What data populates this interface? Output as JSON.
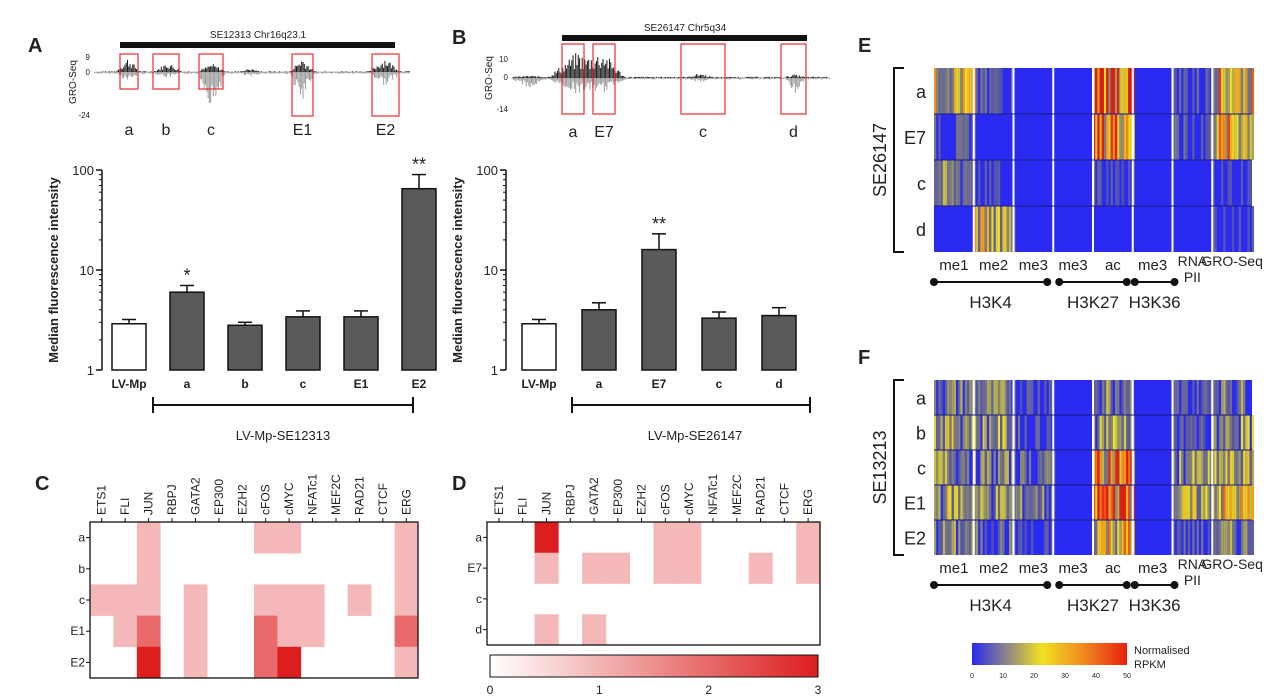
{
  "colors": {
    "bar_dark": "#5a5a5a",
    "heat_low": "#2a2af0",
    "heat_mid": "#f0e020",
    "heat_high": "#e82010",
    "pink_light": "#f4b8b8",
    "pink_mid": "#ea6a6a",
    "pink_dark": "#dc1e1e",
    "gro_pos": "#1a1a1a",
    "gro_neg": "#9a9a9a",
    "box_red": "#e83030"
  },
  "panels": {
    "A": "A",
    "B": "B",
    "C": "C",
    "D": "D",
    "E": "E",
    "F": "F"
  },
  "chart_data": [
    {
      "id": "A_track",
      "type": "area",
      "title": "SE12313 Chr16q23.1",
      "ylabel": "GRO-Seq",
      "y_ticks": [
        "9",
        "0",
        "-24"
      ],
      "boxes": [
        "a",
        "b",
        "c",
        "E1",
        "E2"
      ]
    },
    {
      "id": "B_track",
      "type": "area",
      "title": "SE26147 Chr5q34",
      "ylabel": "GRO-Seq",
      "y_ticks": [
        "10",
        "0",
        "-14"
      ],
      "boxes": [
        "a",
        "E7",
        "c",
        "d"
      ]
    },
    {
      "id": "A_bars",
      "type": "bar",
      "ylabel": "Median fluorescence intensity",
      "yscale": "log",
      "ylim": [
        1,
        100
      ],
      "y_ticks": [
        "1",
        "10",
        "100"
      ],
      "categories": [
        "LV-Mp",
        "a",
        "b",
        "c",
        "E1",
        "E2"
      ],
      "values": [
        2.9,
        6.0,
        2.8,
        3.4,
        3.4,
        65
      ],
      "errors": [
        0.3,
        1.0,
        0.2,
        0.5,
        0.5,
        25
      ],
      "significance": [
        "",
        "*",
        "",
        "",
        "",
        "**"
      ],
      "group_label": "LV-Mp-SE12313"
    },
    {
      "id": "B_bars",
      "type": "bar",
      "ylabel": "Median fluorescence intensity",
      "yscale": "log",
      "ylim": [
        1,
        100
      ],
      "y_ticks": [
        "1",
        "10",
        "100"
      ],
      "categories": [
        "LV-Mp",
        "a",
        "E7",
        "c",
        "d"
      ],
      "values": [
        2.9,
        4.0,
        16,
        3.3,
        3.5
      ],
      "errors": [
        0.3,
        0.7,
        7,
        0.5,
        0.7
      ],
      "significance": [
        "",
        "",
        "**",
        "",
        ""
      ],
      "group_label": "LV-Mp-SE26147"
    },
    {
      "id": "C_heat",
      "type": "heatmap",
      "columns": [
        "ETS1",
        "FLI",
        "JUN",
        "RBPJ",
        "GATA2",
        "EP300",
        "EZH2",
        "cFOS",
        "cMYC",
        "NFATc1",
        "MEF2C",
        "RAD21",
        "CTCF",
        "ERG"
      ],
      "rows": [
        "a",
        "b",
        "c",
        "E1",
        "E2"
      ],
      "values": [
        [
          0,
          0,
          1,
          0,
          0,
          0,
          0,
          1,
          1,
          0,
          0,
          0,
          0,
          1
        ],
        [
          0,
          0,
          1,
          0,
          0,
          0,
          0,
          0,
          0,
          0,
          0,
          0,
          0,
          1
        ],
        [
          1,
          1,
          1,
          0,
          1,
          0,
          0,
          1,
          1,
          1,
          0,
          1,
          0,
          1
        ],
        [
          0,
          1,
          2,
          0,
          1,
          0,
          0,
          2,
          1,
          1,
          0,
          0,
          0,
          2
        ],
        [
          0,
          0,
          2.5,
          0,
          1,
          0,
          0,
          2,
          2.5,
          0,
          0,
          0,
          0,
          1
        ]
      ]
    },
    {
      "id": "D_heat",
      "type": "heatmap",
      "columns": [
        "ETS1",
        "FLI",
        "JUN",
        "RBPJ",
        "GATA2",
        "EP300",
        "EZH2",
        "cFOS",
        "cMYC",
        "NFATc1",
        "MEF2C",
        "RAD21",
        "CTCF",
        "ERG"
      ],
      "rows": [
        "a",
        "E7",
        "c",
        "d"
      ],
      "values": [
        [
          0,
          0,
          3,
          0,
          0,
          0,
          0,
          1,
          1,
          0,
          0,
          0,
          0,
          1
        ],
        [
          0,
          0,
          1,
          0,
          1,
          1,
          0,
          1,
          1,
          0,
          0,
          1,
          0,
          1
        ],
        [
          0,
          0,
          0,
          0,
          0,
          0,
          0,
          0,
          0,
          0,
          0,
          0,
          0,
          0
        ],
        [
          0,
          0,
          1,
          0,
          1,
          0,
          0,
          0,
          0,
          0,
          0,
          0,
          0,
          0
        ]
      ],
      "colorbar": {
        "min": 0,
        "max": 3,
        "ticks": [
          "0",
          "1",
          "2",
          "3"
        ]
      }
    },
    {
      "id": "E_heat",
      "type": "heatmap",
      "side_label": "SE26147",
      "rows": [
        "a",
        "E7",
        "c",
        "d"
      ],
      "columns": [
        "me1",
        "me2",
        "me3",
        "me3",
        "ac",
        "me3",
        "RNA PII",
        "GRO-Seq"
      ],
      "row_col_values": [
        [
          0.5,
          0.2,
          0.05,
          0.05,
          0.9,
          0.05,
          0.2,
          0.6
        ],
        [
          0.2,
          0.1,
          0.05,
          0.05,
          0.8,
          0.05,
          0.2,
          0.6
        ],
        [
          0.3,
          0.15,
          0.05,
          0.05,
          0.2,
          0.05,
          0.1,
          0.15
        ],
        [
          0.1,
          0.5,
          0.05,
          0.05,
          0.1,
          0.05,
          0.05,
          0.15
        ]
      ],
      "groups": [
        "H3K4",
        "H3K27",
        "H3K36"
      ]
    },
    {
      "id": "F_heat",
      "type": "heatmap",
      "side_label": "SE13213",
      "rows": [
        "a",
        "b",
        "c",
        "E1",
        "E2"
      ],
      "columns": [
        "me1",
        "me2",
        "me3",
        "me3",
        "ac",
        "me3",
        "RNA PII",
        "GRO-Seq"
      ],
      "row_col_values": [
        [
          0.3,
          0.3,
          0.2,
          0.05,
          0.35,
          0.05,
          0.2,
          0.3
        ],
        [
          0.4,
          0.35,
          0.2,
          0.05,
          0.4,
          0.05,
          0.2,
          0.35
        ],
        [
          0.35,
          0.3,
          0.25,
          0.05,
          0.75,
          0.05,
          0.35,
          0.4
        ],
        [
          0.4,
          0.35,
          0.3,
          0.05,
          0.85,
          0.05,
          0.4,
          0.55
        ],
        [
          0.3,
          0.25,
          0.15,
          0.05,
          0.6,
          0.05,
          0.2,
          0.3
        ]
      ],
      "groups": [
        "H3K4",
        "H3K27",
        "H3K36"
      ],
      "colorbar": {
        "label": "Normalised RPKM",
        "ticks": [
          "0",
          "10",
          "20",
          "30",
          "40",
          "50"
        ]
      }
    }
  ]
}
